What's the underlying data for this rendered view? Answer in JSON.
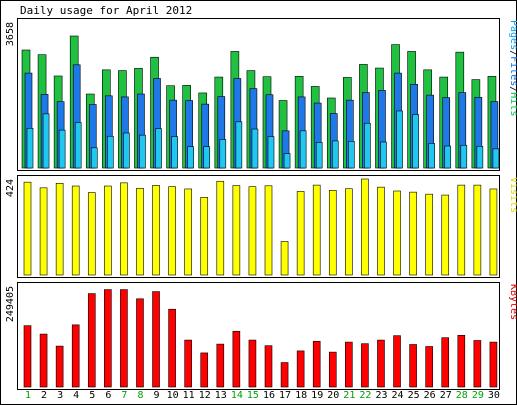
{
  "chart_data": [
    {
      "type": "bar",
      "title": "Daily usage for April 2012",
      "ylabel": "3658",
      "legend": {
        "position": "right",
        "parts": [
          {
            "text": "Pages",
            "color": "#00a0f0"
          },
          {
            "text": "/",
            "color": "#000000"
          },
          {
            "text": "Files",
            "color": "#0070f0"
          },
          {
            "text": "/",
            "color": "#000000"
          },
          {
            "text": "Hits",
            "color": "#00c050"
          }
        ]
      },
      "ylim": [
        0,
        3658
      ],
      "categories": [
        "1",
        "2",
        "3",
        "4",
        "5",
        "6",
        "7",
        "8",
        "9",
        "10",
        "11",
        "12",
        "13",
        "14",
        "15",
        "16",
        "17",
        "18",
        "19",
        "20",
        "21",
        "22",
        "23",
        "24",
        "25",
        "26",
        "27",
        "28",
        "29",
        "30"
      ],
      "series": [
        {
          "name": "Hits",
          "color": "#20c040",
          "values": [
            3270,
            3140,
            2550,
            3658,
            2050,
            2720,
            2700,
            2760,
            3070,
            2280,
            2290,
            2080,
            2520,
            3230,
            2700,
            2530,
            1870,
            2540,
            2260,
            1940,
            2510,
            2870,
            2770,
            3420,
            3230,
            2720,
            2520,
            3210,
            2450,
            2540
          ]
        },
        {
          "name": "Files",
          "color": "#1e78e8",
          "values": [
            2630,
            2040,
            1840,
            2860,
            1760,
            2000,
            1970,
            2050,
            2480,
            1880,
            1870,
            1770,
            1980,
            2480,
            2200,
            2030,
            1030,
            1970,
            1800,
            1510,
            1880,
            2090,
            2150,
            2630,
            2320,
            2020,
            1950,
            2090,
            1960,
            1840
          ]
        },
        {
          "name": "Pages",
          "color": "#20c8f0",
          "values": [
            1100,
            1500,
            1050,
            1260,
            560,
            880,
            970,
            910,
            1090,
            870,
            590,
            590,
            790,
            1280,
            1080,
            870,
            400,
            1030,
            710,
            750,
            740,
            1240,
            720,
            1580,
            1480,
            680,
            610,
            630,
            600,
            530
          ]
        }
      ]
    },
    {
      "type": "bar",
      "ylabel": "424",
      "legend": {
        "position": "right",
        "parts": [
          {
            "text": "Visits",
            "color": "#d8d800"
          }
        ]
      },
      "ylim": [
        0,
        424
      ],
      "categories": [
        "1",
        "2",
        "3",
        "4",
        "5",
        "6",
        "7",
        "8",
        "9",
        "10",
        "11",
        "12",
        "13",
        "14",
        "15",
        "16",
        "17",
        "18",
        "19",
        "20",
        "21",
        "22",
        "23",
        "24",
        "25",
        "26",
        "27",
        "28",
        "29",
        "30"
      ],
      "series": [
        {
          "name": "Visits",
          "color": "#ffff00",
          "values": [
            410,
            385,
            405,
            393,
            364,
            393,
            407,
            383,
            396,
            390,
            380,
            343,
            414,
            395,
            390,
            394,
            148,
            369,
            397,
            374,
            381,
            424,
            388,
            371,
            366,
            357,
            353,
            397,
            397,
            380
          ]
        }
      ]
    },
    {
      "type": "bar",
      "ylabel": "249405",
      "legend": {
        "position": "right",
        "parts": [
          {
            "text": "KBytes",
            "color": "#e00000"
          }
        ]
      },
      "ylim": [
        0,
        249405
      ],
      "categories": [
        "1",
        "2",
        "3",
        "4",
        "5",
        "6",
        "7",
        "8",
        "9",
        "10",
        "11",
        "12",
        "13",
        "14",
        "15",
        "16",
        "17",
        "18",
        "19",
        "20",
        "21",
        "22",
        "23",
        "24",
        "25",
        "26",
        "27",
        "28",
        "29",
        "30"
      ],
      "weekend_days": [
        "1",
        "7",
        "8",
        "14",
        "15",
        "21",
        "22",
        "28",
        "29"
      ],
      "weekend_color": "#00a000",
      "series": [
        {
          "name": "KBytes",
          "color": "#ff0000",
          "values": [
            153000,
            132000,
            102000,
            155000,
            233000,
            243000,
            243000,
            220000,
            238000,
            194000,
            117000,
            85000,
            107000,
            139000,
            117000,
            103000,
            61000,
            90000,
            114000,
            87000,
            112000,
            108000,
            117000,
            128000,
            106000,
            101000,
            123000,
            129000,
            116000,
            112000
          ]
        }
      ]
    }
  ]
}
